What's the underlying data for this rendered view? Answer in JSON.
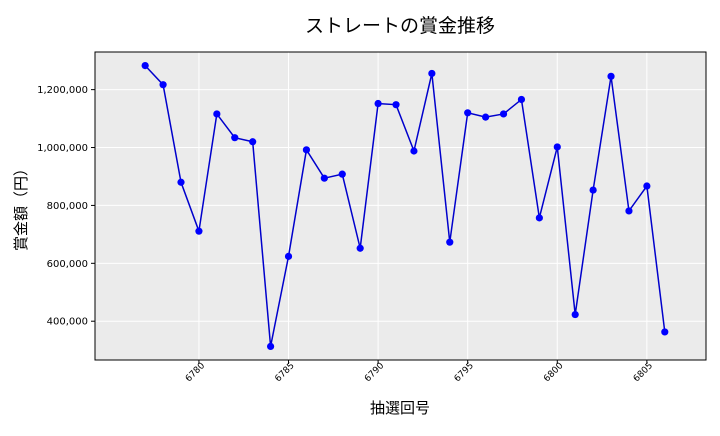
{
  "chart_data": {
    "type": "line",
    "title": "ストレートの賞金推移",
    "xlabel": "抽選回号",
    "ylabel": "賞金額（円）",
    "x": [
      6777,
      6778,
      6779,
      6780,
      6781,
      6782,
      6783,
      6784,
      6785,
      6786,
      6787,
      6788,
      6789,
      6790,
      6791,
      6792,
      6793,
      6794,
      6795,
      6796,
      6797,
      6798,
      6799,
      6800,
      6801,
      6802,
      6803,
      6804,
      6805,
      6806
    ],
    "y": [
      1283000,
      1217000,
      880000,
      711000,
      1116000,
      1034000,
      1020000,
      313000,
      624000,
      992000,
      894000,
      908000,
      652000,
      1152000,
      1148000,
      988000,
      1256000,
      673000,
      1120000,
      1105000,
      1116000,
      1166000,
      757000,
      1002000,
      423000,
      853000,
      1246000,
      781000,
      867000,
      363000
    ],
    "xlim": [
      6774.2,
      6808.3
    ],
    "ylim": [
      266000,
      1330000
    ],
    "xticks": [
      6780,
      6785,
      6790,
      6795,
      6800,
      6805
    ],
    "xtick_labels": [
      "6780",
      "6785",
      "6790",
      "6795",
      "6800",
      "6805"
    ],
    "yticks": [
      400000,
      600000,
      800000,
      1000000,
      1200000
    ],
    "ytick_labels": [
      "400,000",
      "600,000",
      "800,000",
      "1,000,000",
      "1,200,000"
    ],
    "grid": true,
    "colors": {
      "line": "#0000cc",
      "marker": "#0000ff",
      "plot_bg": "#ebebeb",
      "grid": "#ffffff"
    }
  }
}
